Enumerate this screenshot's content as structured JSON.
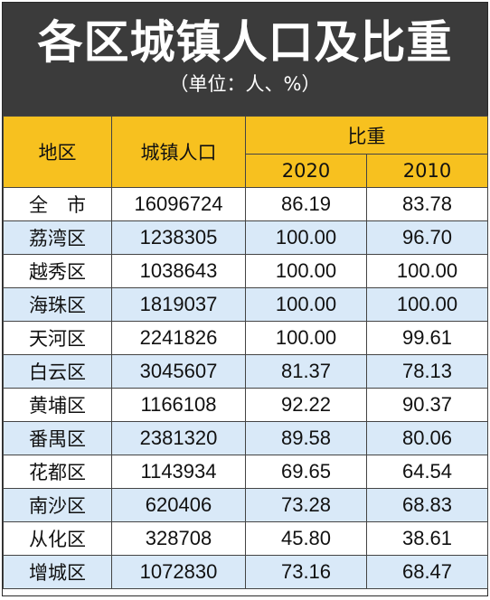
{
  "banner": {
    "title": "各区城镇人口及比重",
    "subtitle": "（单位：人、%）"
  },
  "table": {
    "headers": {
      "region": "地区",
      "urban_population": "城镇人口",
      "ratio_group": "比重",
      "year_2020": "2020",
      "year_2010": "2010"
    },
    "rows": [
      {
        "region": "全　市",
        "population": "16096724",
        "ratio_2020": "86.19",
        "ratio_2010": "83.78"
      },
      {
        "region": "荔湾区",
        "population": "1238305",
        "ratio_2020": "100.00",
        "ratio_2010": "96.70"
      },
      {
        "region": "越秀区",
        "population": "1038643",
        "ratio_2020": "100.00",
        "ratio_2010": "100.00"
      },
      {
        "region": "海珠区",
        "population": "1819037",
        "ratio_2020": "100.00",
        "ratio_2010": "100.00"
      },
      {
        "region": "天河区",
        "population": "2241826",
        "ratio_2020": "100.00",
        "ratio_2010": "99.61"
      },
      {
        "region": "白云区",
        "population": "3045607",
        "ratio_2020": "81.37",
        "ratio_2010": "78.13"
      },
      {
        "region": "黄埔区",
        "population": "1166108",
        "ratio_2020": "92.22",
        "ratio_2010": "90.37"
      },
      {
        "region": "番禺区",
        "population": "2381320",
        "ratio_2020": "89.58",
        "ratio_2010": "80.06"
      },
      {
        "region": "花都区",
        "population": "1143934",
        "ratio_2020": "69.65",
        "ratio_2010": "64.54"
      },
      {
        "region": "南沙区",
        "population": "620406",
        "ratio_2020": "73.28",
        "ratio_2010": "68.83"
      },
      {
        "region": "从化区",
        "population": "328708",
        "ratio_2020": "45.80",
        "ratio_2010": "38.61"
      },
      {
        "region": "增城区",
        "population": "1072830",
        "ratio_2020": "73.16",
        "ratio_2010": "68.47"
      }
    ]
  },
  "colors": {
    "banner_bg": "#3b3b3b",
    "header_bg": "#f7c11f",
    "stripe_bg": "#d9e9f8"
  }
}
